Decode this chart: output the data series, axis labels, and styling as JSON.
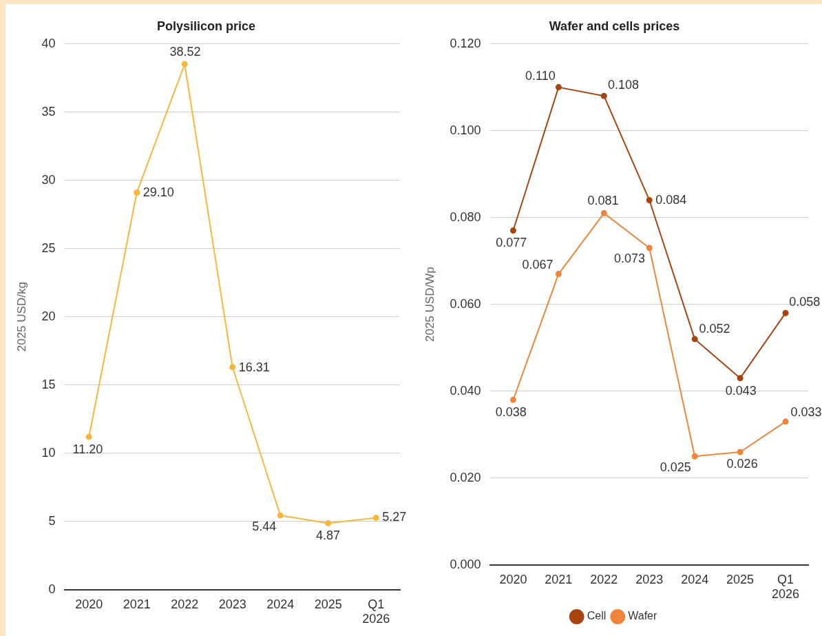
{
  "chart_data": [
    {
      "type": "line",
      "title": "Polysilicon price",
      "ylabel": "2025 USD/kg",
      "categories": [
        "2020",
        "2021",
        "2022",
        "2023",
        "2024",
        "2025",
        "Q1 2026"
      ],
      "series": [
        {
          "color": "#f8b73b",
          "values": [
            11.2,
            29.1,
            38.52,
            16.31,
            5.44,
            4.87,
            5.27
          ],
          "value_labels": [
            "11.20",
            "29.10",
            "38.52",
            "16.31",
            "5.44",
            "4.87",
            "5.27"
          ]
        }
      ],
      "ylim": [
        0,
        40
      ],
      "yticks": [
        0,
        5,
        10,
        15,
        20,
        25,
        30,
        35,
        40
      ],
      "grid": "y",
      "legend": false,
      "marker": "circle",
      "line_style": "solid"
    },
    {
      "type": "line",
      "title": "Wafer and cells prices",
      "ylabel": "2025 USD/Wp",
      "categories": [
        "2020",
        "2021",
        "2022",
        "2023",
        "2024",
        "2025",
        "Q1 2026"
      ],
      "series": [
        {
          "name": "Cell",
          "color": "#a9430f",
          "values": [
            0.077,
            0.11,
            0.108,
            0.084,
            0.052,
            0.043,
            0.058
          ],
          "value_labels": [
            "0.077",
            "0.110",
            "0.108",
            "0.084",
            "0.052",
            "0.043",
            "0.058"
          ]
        },
        {
          "name": "Wafer",
          "color": "#f0843a",
          "values": [
            0.038,
            0.067,
            0.081,
            0.073,
            0.025,
            0.026,
            0.033
          ],
          "value_labels": [
            "0.038",
            "0.067",
            "0.081",
            "0.073",
            "0.025",
            "0.026",
            "0.033"
          ]
        }
      ],
      "ylim": [
        0,
        0.12
      ],
      "yticks": [
        {
          "value": 0,
          "label": "0.000"
        },
        {
          "value": 0.02,
          "label": "0.020"
        },
        {
          "value": 0.04,
          "label": "0.040"
        },
        {
          "value": 0.06,
          "label": "0.060"
        },
        {
          "value": 0.08,
          "label": "0.080"
        },
        {
          "value": 0.1,
          "label": "0.100"
        },
        {
          "value": 0.12,
          "label": "0.120"
        }
      ],
      "grid": "y",
      "legend": "bottom",
      "marker": "circle",
      "line_style": "solid"
    }
  ]
}
